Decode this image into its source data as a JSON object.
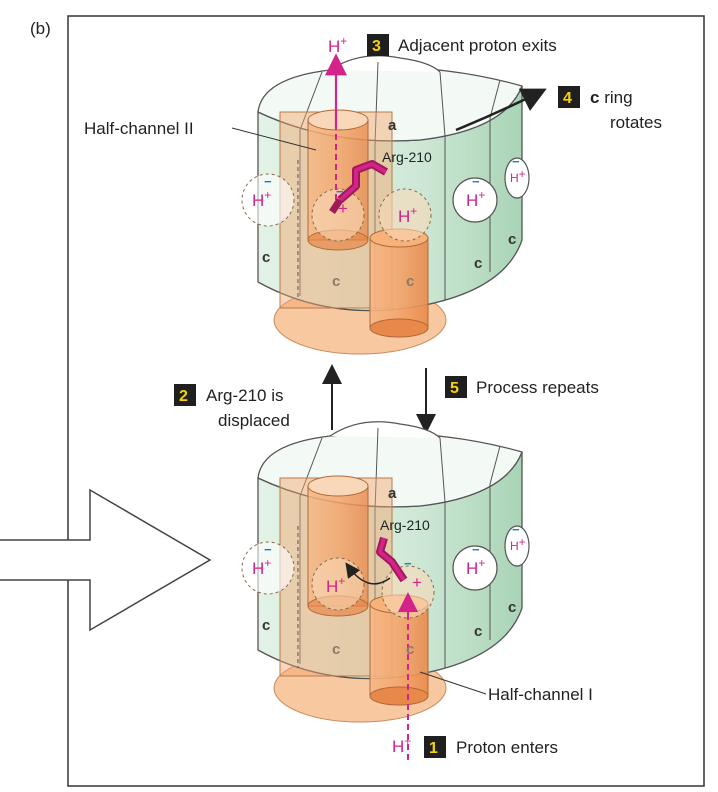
{
  "panel_label": "(b)",
  "title_steps": {
    "step1": {
      "num": "1",
      "text": "Proton enters"
    },
    "step2": {
      "num": "2",
      "line1": "Arg-210 is",
      "line2": "displaced"
    },
    "step3": {
      "num": "3",
      "text": "Adjacent proton exits"
    },
    "step4": {
      "num": "4",
      "bold": "c",
      "line1": " ring",
      "line2": "rotates"
    },
    "step5": {
      "num": "5",
      "text": "Process repeats"
    }
  },
  "labels": {
    "half_channel_2": "Half-channel II",
    "half_channel_1": "Half-channel I",
    "arg_top": "Arg-210",
    "arg_bottom": "Arg-210",
    "subunit_a_top": "a",
    "subunit_a_bottom": "a",
    "subunit_c": "c",
    "proton": "H",
    "plus": "+",
    "minus": "−"
  },
  "colors": {
    "green_face": "#cfe8d6",
    "green_dark": "#a9d4b6",
    "orange": "#f4a46a",
    "orange_light": "#f8c9a0",
    "magenta": "#d4238a",
    "badge": "#1f1f1f",
    "badge_text": "#f5d211"
  }
}
